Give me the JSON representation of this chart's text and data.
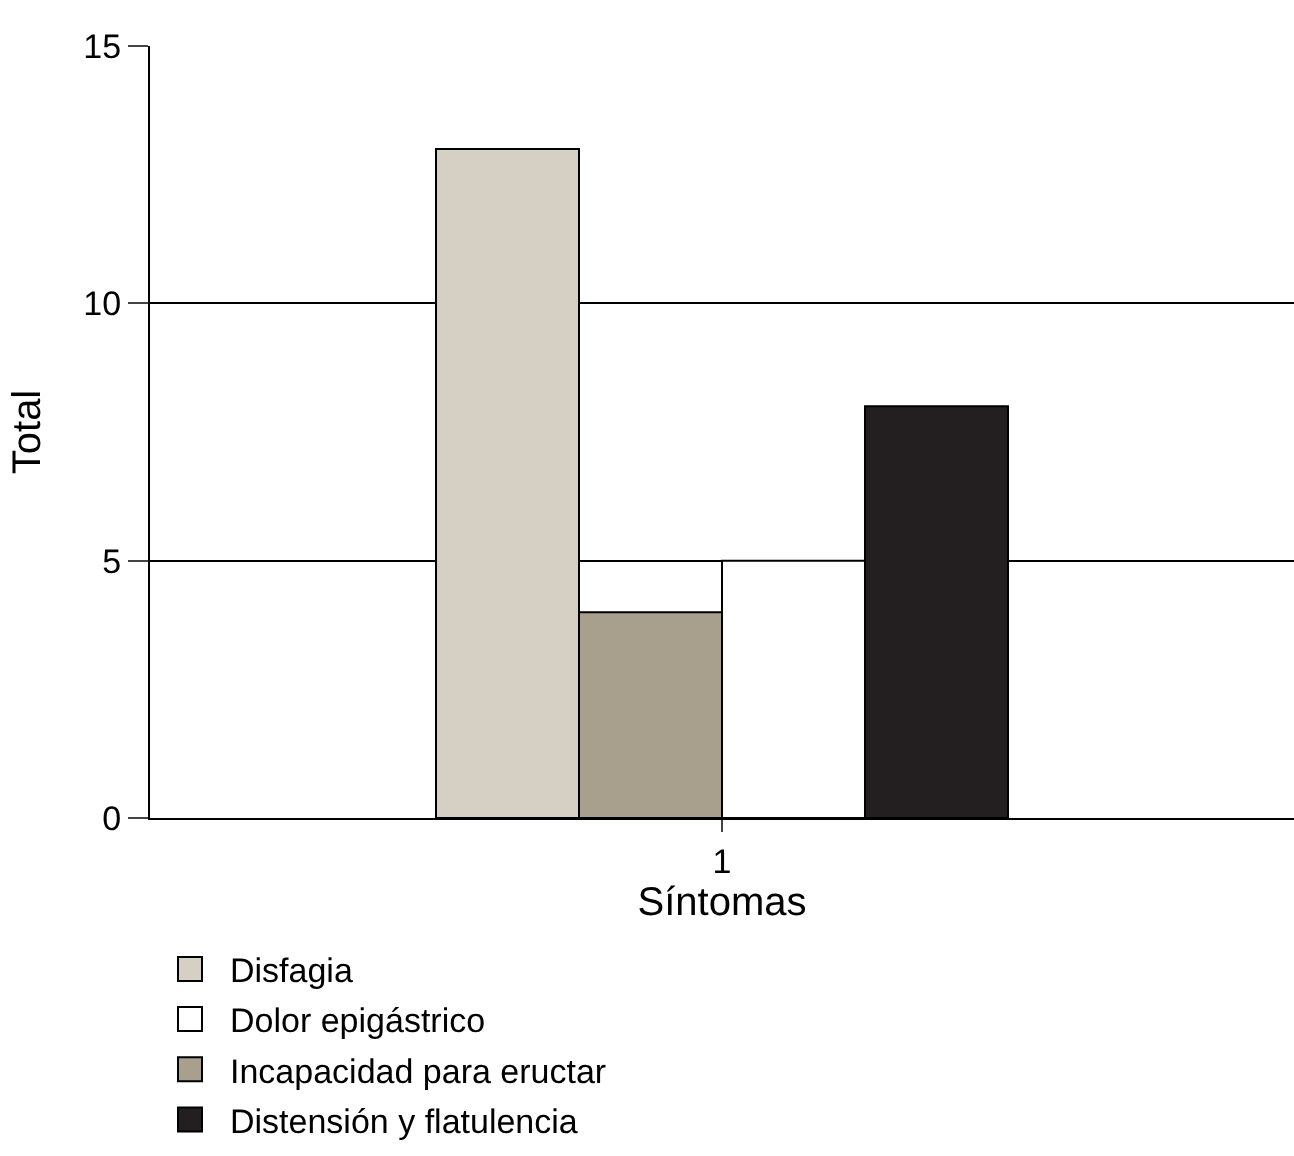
{
  "chart_data": {
    "type": "bar",
    "xlabel": "Síntomas",
    "ylabel": "Total",
    "categories": [
      "1"
    ],
    "series": [
      {
        "name": "Disfagia",
        "color": "#d6d0c4",
        "values": [
          13
        ]
      },
      {
        "name": "Incapacidad para eructar",
        "color": "#a8a08c",
        "values": [
          4
        ]
      },
      {
        "name": "Dolor epigástrico",
        "color": "#ffffff",
        "values": [
          5
        ]
      },
      {
        "name": "Distensión y flatulencia",
        "color": "#231f20",
        "values": [
          8
        ]
      }
    ],
    "ylim": [
      0,
      15
    ],
    "yticks": [
      0,
      5,
      10,
      15
    ],
    "grid": "y",
    "legend": "bottom"
  }
}
